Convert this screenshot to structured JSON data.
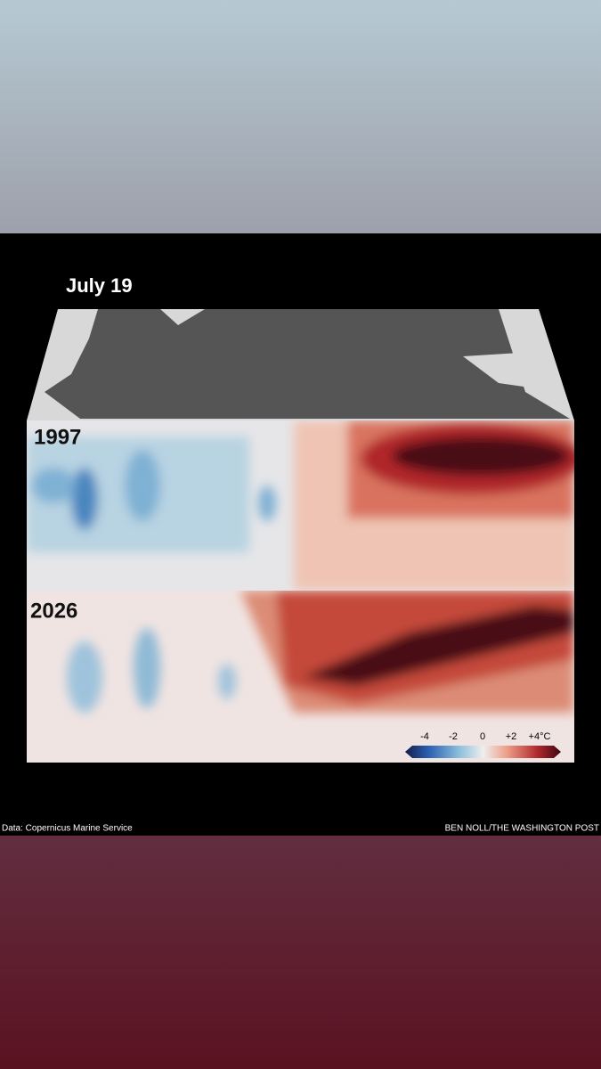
{
  "title": "July 19",
  "panels": [
    {
      "label": "1997"
    },
    {
      "label": "2026"
    }
  ],
  "legend": {
    "labels": [
      "-4",
      "-2",
      "0",
      "+2",
      "+4°C"
    ]
  },
  "footer": {
    "source": "Data: Copernicus Marine Service",
    "credit": "BEN NOLL/THE WASHINGTON POST"
  }
}
